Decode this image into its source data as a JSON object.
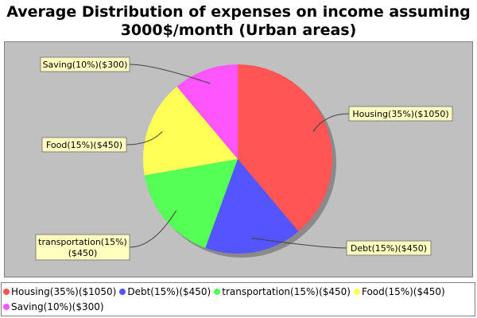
{
  "chart_data": {
    "type": "pie",
    "title": "Average Distribution of expenses on income assuming 3000$/month (Urban areas)",
    "slices": [
      {
        "label": "Housing(35%)($1050)",
        "value": 35,
        "color": "#ff5555"
      },
      {
        "label": "Debt(15%)($450)",
        "value": 15,
        "color": "#5555ff"
      },
      {
        "label": "transportation(15%)($450)",
        "value": 15,
        "color": "#55ff55"
      },
      {
        "label": "Food(15%)($450)",
        "value": 15,
        "color": "#ffff55"
      },
      {
        "label": "Saving(10%)($300)",
        "value": 10,
        "color": "#ff55ff"
      }
    ],
    "legend_position": "bottom"
  },
  "title_lines": [
    "Average Distribution of expenses on income assuming",
    "3000$/month (Urban areas)"
  ],
  "callouts": [
    {
      "lines": [
        "Housing(35%)($1050)"
      ]
    },
    {
      "lines": [
        "Debt(15%)($450)"
      ]
    },
    {
      "lines": [
        "transportation(15%)",
        "($450)"
      ]
    },
    {
      "lines": [
        "Food(15%)($450)"
      ]
    },
    {
      "lines": [
        "Saving(10%)($300)"
      ]
    }
  ]
}
